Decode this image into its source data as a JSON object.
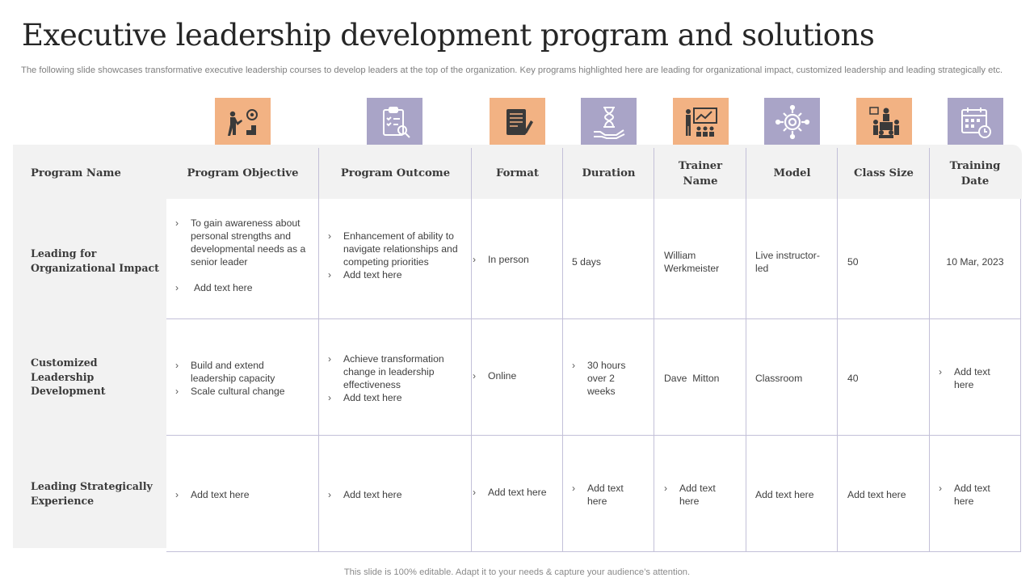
{
  "title": "Executive leadership development program and solutions",
  "subtitle": "The following slide showcases transformative executive leadership courses to develop leaders at the top of the organization. Key programs highlighted here are leading for organizational impact, customized leadership and leading strategically etc.",
  "icons": [
    {
      "name": "goal-climb-icon",
      "color": "#f2b283"
    },
    {
      "name": "clipboard-search-icon",
      "color": "#a9a4c7"
    },
    {
      "name": "document-pen-icon",
      "color": "#f2b283"
    },
    {
      "name": "hourglass-hand-icon",
      "color": "#a9a4c7"
    },
    {
      "name": "presentation-audience-icon",
      "color": "#f2b283"
    },
    {
      "name": "gear-network-icon",
      "color": "#a9a4c7"
    },
    {
      "name": "team-meeting-icon",
      "color": "#f2b283"
    },
    {
      "name": "calendar-clock-icon",
      "color": "#a9a4c7"
    }
  ],
  "headers": {
    "program_name": "Program Name",
    "objective": "Program Objective",
    "outcome": "Program Outcome",
    "format": "Format",
    "duration": "Duration",
    "trainer": "Trainer Name",
    "model": "Model",
    "class_size": "Class Size",
    "training_date": "Training Date"
  },
  "rows": [
    {
      "name": "Leading for Organizational Impact",
      "objective": [
        "To gain awareness about personal strengths and developmental needs as a senior leader",
        "Add text here"
      ],
      "outcome": [
        "Enhancement of ability to navigate relationships and competing priorities",
        "Add text here"
      ],
      "format": "In person",
      "duration": "5 days",
      "trainer": "William Werkmeister",
      "model": "Live instructor-led",
      "class_size": "50",
      "training_date": "10 Mar, 2023"
    },
    {
      "name": "Customized Leadership Development",
      "objective": [
        "Build and extend leadership capacity",
        "Scale cultural change"
      ],
      "outcome": [
        "Achieve transformation change in leadership effectiveness",
        "Add text here"
      ],
      "format": "Online",
      "duration": "30 hours over 2 weeks",
      "trainer": "Dave  Mitton",
      "model": "Classroom",
      "class_size": "40",
      "training_date": "Add text here"
    },
    {
      "name": "Leading Strategically Experience",
      "objective": [
        "Add text here"
      ],
      "outcome": [
        "Add text here"
      ],
      "format": "Add text here",
      "duration": "Add text here",
      "trainer": "Add text here",
      "model": "Add text here",
      "class_size": "Add text here",
      "training_date": "Add text here"
    }
  ],
  "footer": "This slide is 100% editable. Adapt it to your needs & capture your audience’s attention."
}
